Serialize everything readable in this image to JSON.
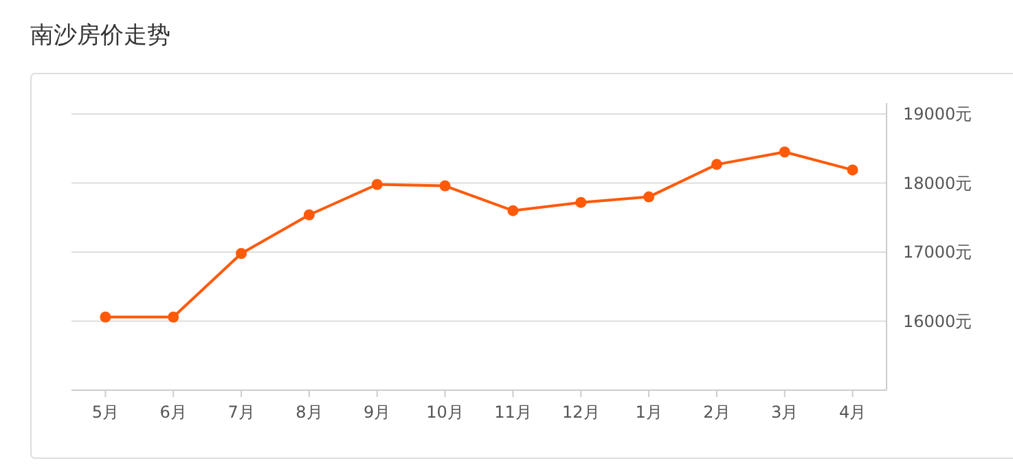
{
  "chart_data": {
    "type": "line",
    "title": "南沙房价走势",
    "categories": [
      "5月",
      "6月",
      "7月",
      "8月",
      "9月",
      "10月",
      "11月",
      "12月",
      "1月",
      "2月",
      "3月",
      "4月"
    ],
    "series": [
      {
        "color": "#ff5a0a",
        "values": [
          16060,
          16060,
          16980,
          17540,
          17980,
          17960,
          17600,
          17720,
          17800,
          18270,
          18450,
          18190
        ]
      }
    ],
    "ylim": [
      15000,
      19000
    ],
    "yticks": [
      {
        "value": 16000,
        "label": "16000元"
      },
      {
        "value": 17000,
        "label": "17000元"
      },
      {
        "value": 18000,
        "label": "18000元"
      },
      {
        "value": 19000,
        "label": "19000元"
      }
    ],
    "grid": "y",
    "marker": "circle",
    "line_style": "solid"
  }
}
